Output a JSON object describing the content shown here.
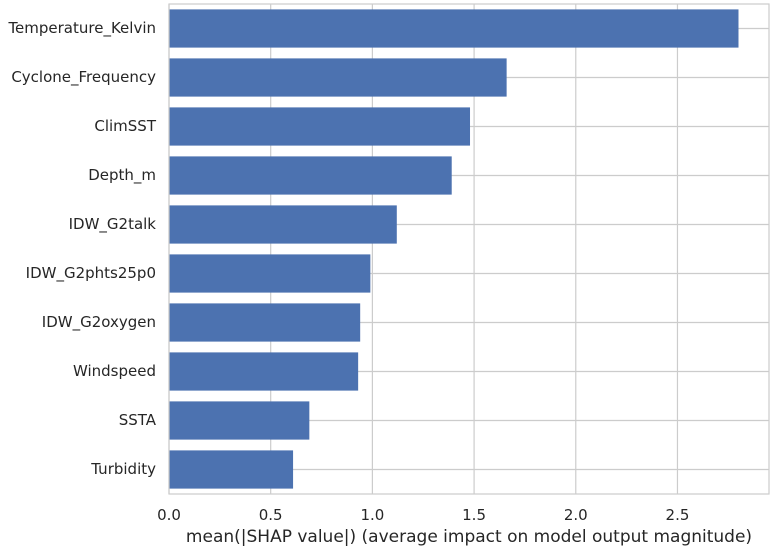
{
  "chart_data": {
    "type": "bar",
    "orientation": "horizontal",
    "title": "",
    "xlabel": "mean(|SHAP value|) (average impact on model output magnitude)",
    "ylabel": "",
    "categories": [
      "Temperature_Kelvin",
      "Cyclone_Frequency",
      "ClimSST",
      "Depth_m",
      "IDW_G2talk",
      "IDW_G2phts25p0",
      "IDW_G2oxygen",
      "Windspeed",
      "SSTA",
      "Turbidity"
    ],
    "values": [
      2.8,
      1.66,
      1.48,
      1.39,
      1.12,
      0.99,
      0.94,
      0.93,
      0.69,
      0.61
    ],
    "xlim": [
      0,
      2.95
    ],
    "xticks": [
      0.0,
      0.5,
      1.0,
      1.5,
      2.0,
      2.5
    ],
    "xtick_labels": [
      "0.0",
      "0.5",
      "1.0",
      "1.5",
      "2.0",
      "2.5"
    ],
    "grid": true,
    "bar_color": "#4c72b0",
    "grid_color": "#cccccc"
  }
}
